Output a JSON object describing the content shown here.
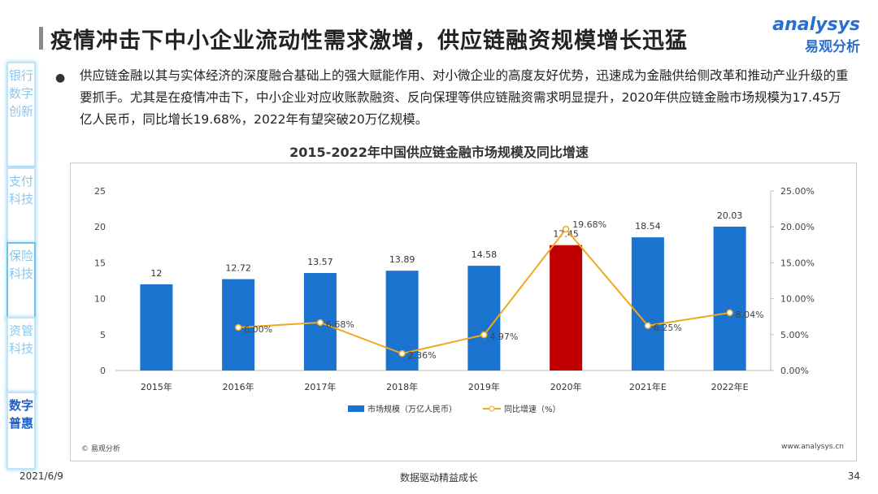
{
  "header": {
    "title": "疫情冲击下中小企业流动性需求激增，供应链融资规模增长迅猛",
    "logo_en": "analysys",
    "logo_cn": "易观分析"
  },
  "sidebar": {
    "items": [
      {
        "label": "银行数字创新"
      },
      {
        "label": "支付科技"
      },
      {
        "label": "保险科技"
      },
      {
        "label": "资管科技"
      },
      {
        "label": "数字普惠"
      }
    ]
  },
  "body": {
    "bullet": "●",
    "paragraph": "供应链金融以其与实体经济的深度融合基础上的强大赋能作用、对小微企业的高度友好优势，迅速成为金融供给侧改革和推动产业升级的重要抓手。尤其是在疫情冲击下，中小企业对应收账款融资、反向保理等供应链融资需求明显提升，2020年供应链金融市场规模为17.45万亿人民币，同比增长19.68%，2022年有望突破20万亿规模。"
  },
  "chart_data": {
    "type": "bar",
    "title": "2015-2022年中国供应链金融市场规模及同比增速",
    "categories": [
      "2015年",
      "2016年",
      "2017年",
      "2018年",
      "2019年",
      "2020年",
      "2021年E",
      "2022年E"
    ],
    "series": [
      {
        "name": "市场规模（万亿人民币）",
        "type": "bar",
        "axis": "left",
        "values": [
          12,
          12.72,
          13.57,
          13.89,
          14.58,
          17.45,
          18.54,
          20.03
        ],
        "labels": [
          "12",
          "12.72",
          "13.57",
          "13.89",
          "14.58",
          "17.45",
          "18.54",
          "20.03"
        ],
        "color": "#1a73cf",
        "highlight_color": "#c00000",
        "highlight_index": 5
      },
      {
        "name": "同比增速（%）",
        "type": "line",
        "axis": "right",
        "values": [
          null,
          6.0,
          6.68,
          2.36,
          4.97,
          19.68,
          6.25,
          8.04
        ],
        "labels": [
          "",
          "6.00%",
          "6.68%",
          "2.36%",
          "4.97%",
          "19.68%",
          "6.25%",
          "8.04%"
        ],
        "color": "#f0a81c"
      }
    ],
    "ylim": [
      0,
      25
    ],
    "yticks": [
      "0",
      "5",
      "10",
      "15",
      "20",
      "25"
    ],
    "y2lim": [
      0,
      25
    ],
    "y2ticks": [
      "0.00%",
      "5.00%",
      "10.00%",
      "15.00%",
      "20.00%",
      "25.00%"
    ],
    "legend": "bottom"
  },
  "footer": {
    "source": "© 易观分析",
    "site": "www.analysys.cn",
    "date": "2021/6/9",
    "slogan": "数据驱动精益成长",
    "page": "34"
  }
}
